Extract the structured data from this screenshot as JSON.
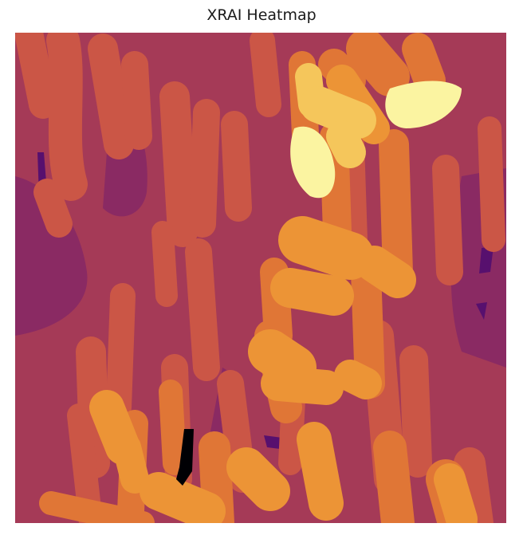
{
  "figure": {
    "title": "XRAI Heatmap"
  },
  "heatmap": {
    "colormap": "inferno",
    "palette": {
      "black": "#000004",
      "deep_purple": "#57106e",
      "purple": "#8a2a63",
      "magenta": "#a53a57",
      "red_orange": "#cb5646",
      "orange": "#e07636",
      "light_orange": "#ec9436",
      "yellow": "#f5c65b",
      "pale_yellow": "#fbf4a1"
    },
    "axes_visible": false
  }
}
